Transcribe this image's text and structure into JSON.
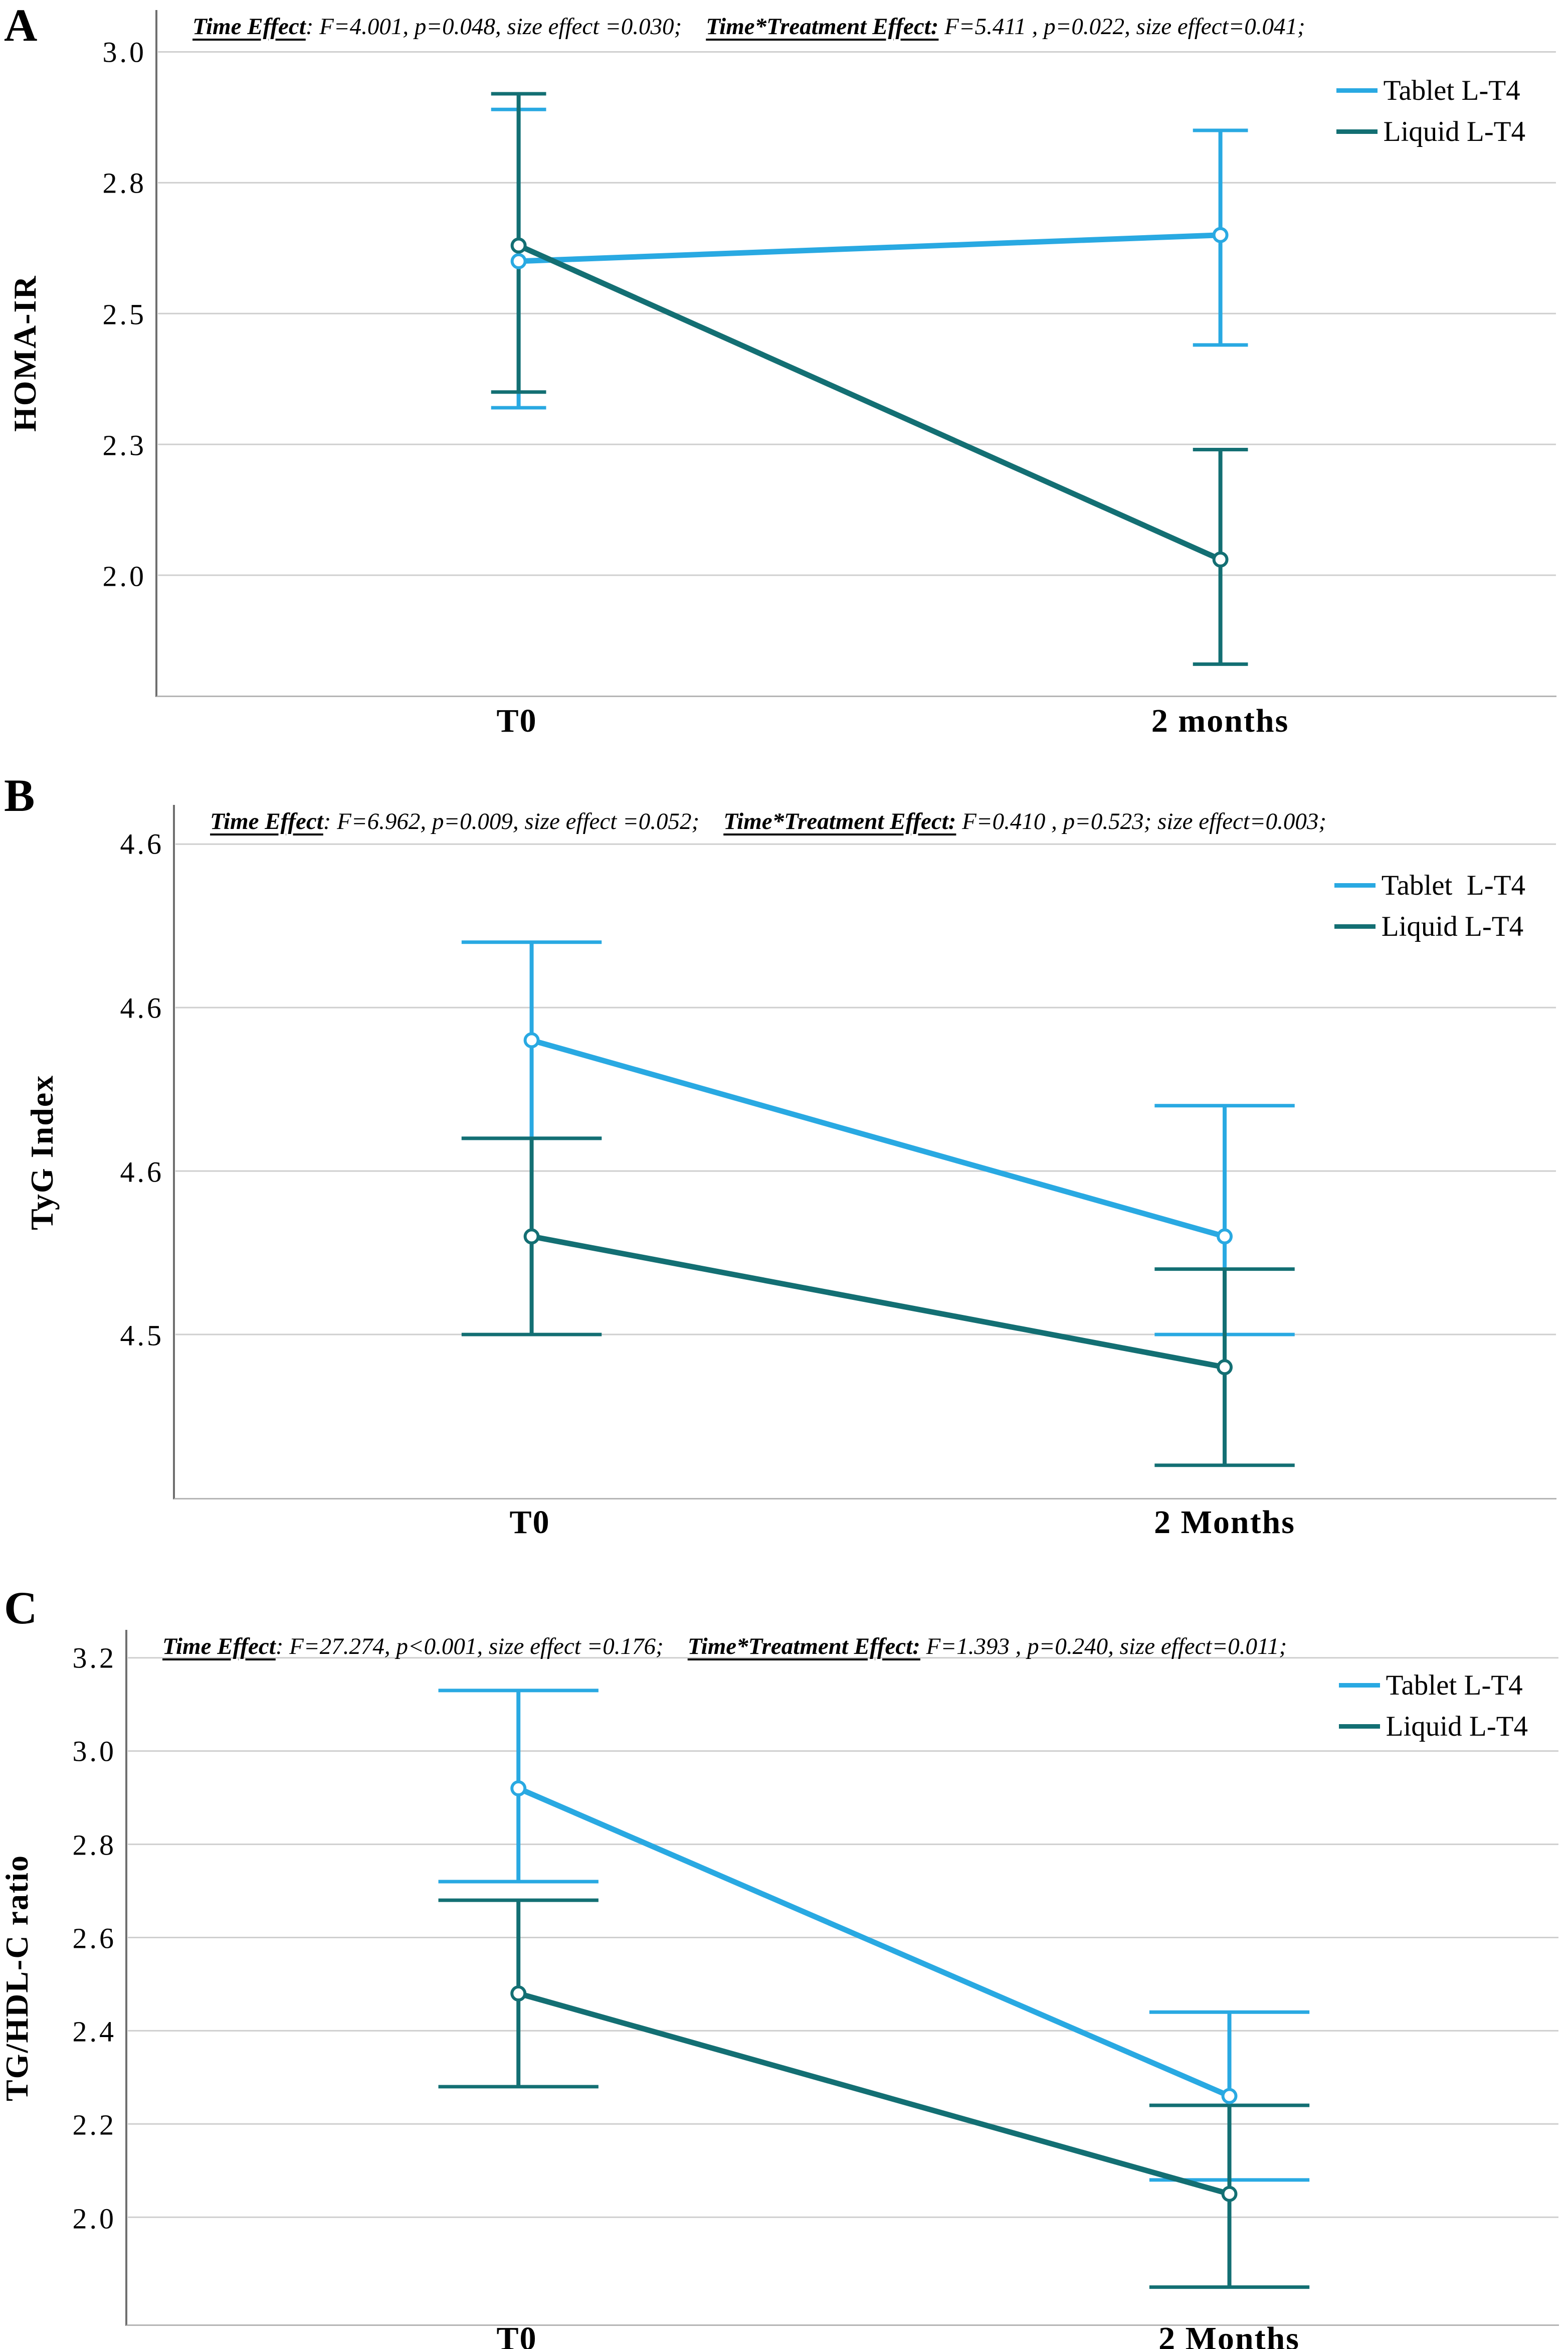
{
  "figure": {
    "description": "Three stacked line charts with 95% CI error bars comparing Tablet vs Liquid L-T4 over time"
  },
  "chart_data": [
    {
      "type": "line",
      "panel_label": "A",
      "header": {
        "time_effect_label": "Time Effect",
        "time_effect_stats": ": F=4.001, p=0.048, size effect =0.030;",
        "interaction_label": "Time*Treatment Effect:",
        "interaction_stats": " F=5.411 , p=0.022, size effect=0.041;"
      },
      "ylabel": "HOMA-IR",
      "x_categories": [
        "T0",
        "2 months"
      ],
      "yticks": [
        {
          "value": 3.0,
          "label": "3.0"
        },
        {
          "value": 2.75,
          "label": "2.8"
        },
        {
          "value": 2.5,
          "label": "2.5"
        },
        {
          "value": 2.25,
          "label": "2.3"
        },
        {
          "value": 2.0,
          "label": "2.0"
        }
      ],
      "ylim": [
        1.77,
        3.08
      ],
      "grid": true,
      "legend_position": "top-right",
      "series": [
        {
          "name": "Tablet L-T4",
          "color": "#29A9E2",
          "means": [
            2.6,
            2.65
          ],
          "ci_low": [
            2.32,
            2.44
          ],
          "ci_high": [
            2.89,
            2.85
          ]
        },
        {
          "name": "Liquid L-T4",
          "color": "#136F73",
          "means": [
            2.63,
            2.03
          ],
          "ci_low": [
            2.35,
            1.83
          ],
          "ci_high": [
            2.92,
            2.24
          ]
        }
      ]
    },
    {
      "type": "line",
      "panel_label": "B",
      "header": {
        "time_effect_label": "Time Effect",
        "time_effect_stats": ": F=6.962, p=0.009, size effect =0.052;",
        "interaction_label": "Time*Treatment Effect:",
        "interaction_stats": " F=0.410 , p=0.523; size effect=0.003;"
      },
      "ylabel": "TyG Index",
      "x_categories": [
        "T0",
        "2 Months"
      ],
      "yticks": [
        {
          "value": 4.65,
          "label": "4.6"
        },
        {
          "value": 4.6,
          "label": "4.6"
        },
        {
          "value": 4.55,
          "label": "4.6"
        },
        {
          "value": 4.5,
          "label": "4.5"
        }
      ],
      "ylim": [
        4.45,
        4.662
      ],
      "grid": true,
      "legend_position": "top-right",
      "series": [
        {
          "name": "Tablet  L-T4",
          "color": "#29A9E2",
          "means": [
            4.59,
            4.53
          ],
          "ci_low": [
            4.56,
            4.5
          ],
          "ci_high": [
            4.62,
            4.57
          ]
        },
        {
          "name": "Liquid L-T4",
          "color": "#136F73",
          "means": [
            4.53,
            4.49
          ],
          "ci_low": [
            4.5,
            4.46
          ],
          "ci_high": [
            4.56,
            4.52
          ]
        }
      ]
    },
    {
      "type": "line",
      "panel_label": "C",
      "header": {
        "time_effect_label": "Time Effect",
        "time_effect_stats": ": F=27.274, p<0.001, size effect =0.176;",
        "interaction_label": "Time*Treatment Effect:",
        "interaction_stats": " F=1.393 , p=0.240, size effect=0.011;"
      },
      "ylabel": "TG/HDL-C ratio",
      "x_categories": [
        "T0",
        "2 Months"
      ],
      "yticks": [
        {
          "value": 3.2,
          "label": "3.2"
        },
        {
          "value": 3.0,
          "label": "3.0"
        },
        {
          "value": 2.8,
          "label": "2.8"
        },
        {
          "value": 2.6,
          "label": "2.6"
        },
        {
          "value": 2.4,
          "label": "2.4"
        },
        {
          "value": 2.2,
          "label": "2.2"
        },
        {
          "value": 2.0,
          "label": "2.0"
        }
      ],
      "ylim": [
        1.77,
        3.26
      ],
      "grid": true,
      "legend_position": "top-right",
      "series": [
        {
          "name": "Tablet L-T4",
          "color": "#29A9E2",
          "means": [
            2.92,
            2.26
          ],
          "ci_low": [
            2.72,
            2.08
          ],
          "ci_high": [
            3.13,
            2.44
          ]
        },
        {
          "name": "Liquid L-T4",
          "color": "#136F73",
          "means": [
            2.48,
            2.05
          ],
          "ci_low": [
            2.28,
            1.85
          ],
          "ci_high": [
            2.68,
            2.24
          ]
        }
      ]
    }
  ]
}
